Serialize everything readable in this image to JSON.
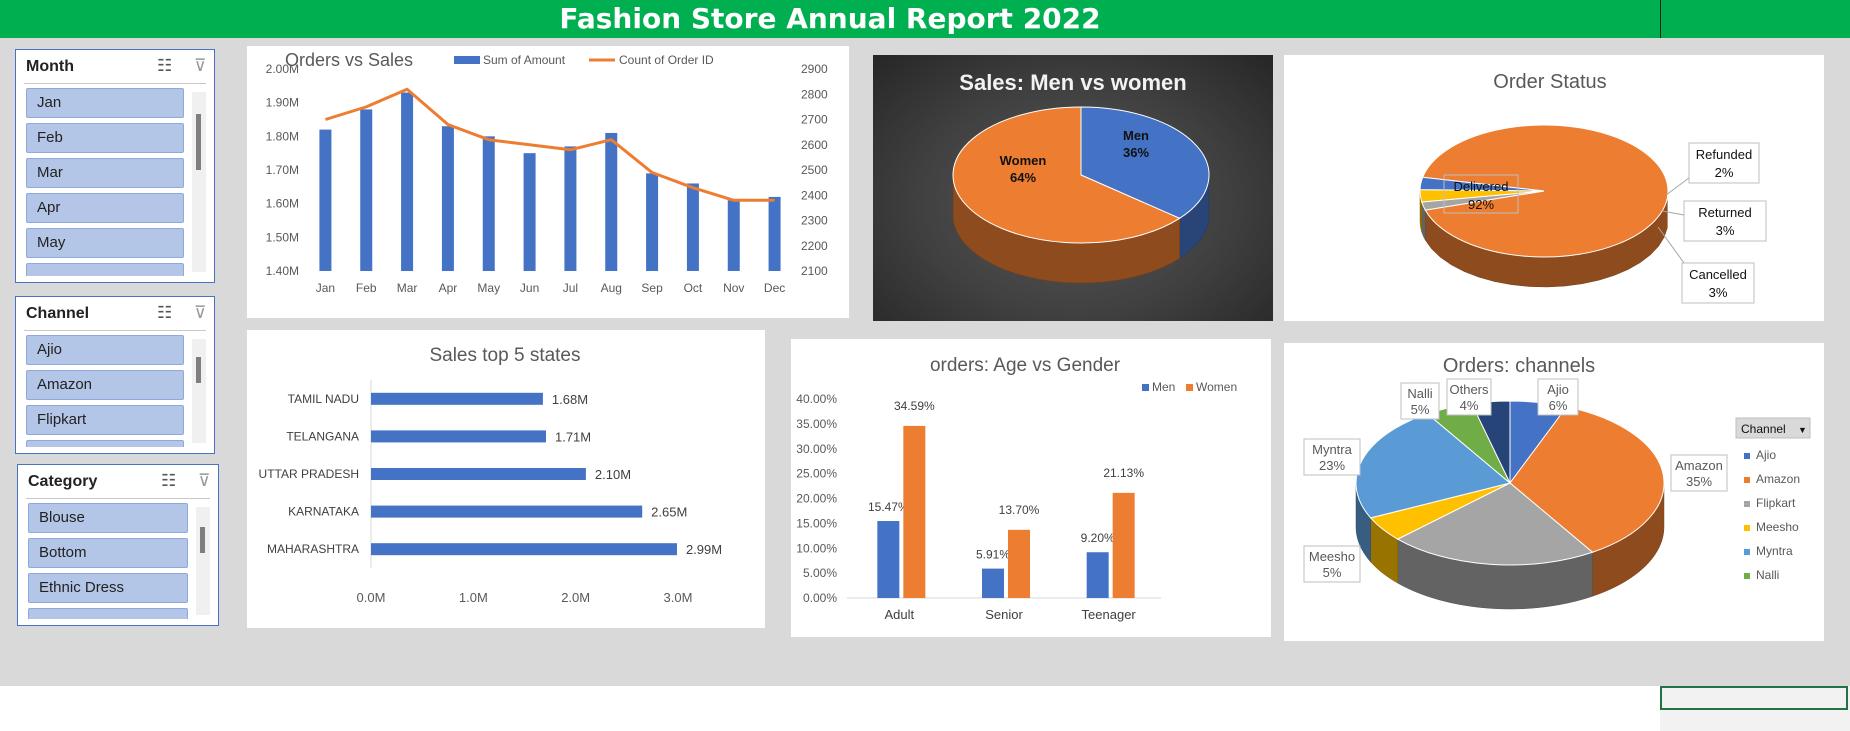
{
  "report_title": "Fashion Store Annual Report 2022",
  "slicers": {
    "month": {
      "title": "Month",
      "items": [
        "Jan",
        "Feb",
        "Mar",
        "Apr",
        "May"
      ]
    },
    "channel": {
      "title": "Channel",
      "items": [
        "Ajio",
        "Amazon",
        "Flipkart"
      ]
    },
    "category": {
      "title": "Category",
      "items": [
        "Blouse",
        "Bottom",
        "Ethnic Dress"
      ]
    }
  },
  "colors": {
    "blue": "#4472c4",
    "orange": "#ed7d31",
    "gray": "#a5a5a5",
    "yellow": "#ffc000",
    "lightblue": "#5b9bd5",
    "green": "#70ad47",
    "navy": "#264478",
    "title_green": "#00b050"
  },
  "chart_data": [
    {
      "id": "orders_vs_sales",
      "type": "bar",
      "title": "Orders vs Sales",
      "categories": [
        "Jan",
        "Feb",
        "Mar",
        "Apr",
        "May",
        "Jun",
        "Jul",
        "Aug",
        "Sep",
        "Oct",
        "Nov",
        "Dec"
      ],
      "series": [
        {
          "name": "Sum of Amount",
          "type": "bar",
          "axis": "left",
          "values": [
            1.82,
            1.88,
            1.93,
            1.83,
            1.8,
            1.75,
            1.77,
            1.81,
            1.69,
            1.66,
            1.61,
            1.62
          ]
        },
        {
          "name": "Count of Order ID",
          "type": "line",
          "axis": "right",
          "values": [
            2700,
            2750,
            2820,
            2680,
            2620,
            2600,
            2580,
            2620,
            2490,
            2430,
            2380,
            2380
          ]
        }
      ],
      "ylim_left": [
        1.4,
        2.0
      ],
      "ylim_right": [
        2100,
        2900
      ],
      "y_ticks_left": [
        "1.40M",
        "1.50M",
        "1.60M",
        "1.70M",
        "1.80M",
        "1.90M",
        "2.00M"
      ],
      "y_ticks_right": [
        "2100",
        "2200",
        "2300",
        "2400",
        "2500",
        "2600",
        "2700",
        "2800",
        "2900"
      ],
      "legend": "top-right"
    },
    {
      "id": "sales_men_women",
      "type": "pie",
      "title": "Sales: Men vs women",
      "categories": [
        "Men",
        "Women"
      ],
      "values": [
        36,
        64
      ],
      "labels": [
        "36%",
        "64%"
      ]
    },
    {
      "id": "order_status",
      "type": "pie",
      "title": "Order Status",
      "categories": [
        "Delivered",
        "Refunded",
        "Returned",
        "Cancelled"
      ],
      "values": [
        92,
        2,
        3,
        3
      ],
      "labels": [
        "92%",
        "2%",
        "3%",
        "3%"
      ]
    },
    {
      "id": "sales_top_states",
      "type": "bar",
      "orientation": "horizontal",
      "title": "Sales top 5 states",
      "categories": [
        "TAMIL NADU",
        "TELANGANA",
        "UTTAR PRADESH",
        "KARNATAKA",
        "MAHARASHTRA"
      ],
      "values": [
        1.68,
        1.71,
        2.1,
        2.65,
        2.99
      ],
      "labels": [
        "1.68M",
        "1.71M",
        "2.10M",
        "2.65M",
        "2.99M"
      ],
      "xlim": [
        0,
        3.0
      ],
      "x_ticks": [
        "0.0M",
        "1.0M",
        "2.0M",
        "3.0M"
      ]
    },
    {
      "id": "age_vs_gender",
      "type": "bar",
      "title": "orders: Age vs Gender",
      "categories": [
        "Adult",
        "Senior",
        "Teenager"
      ],
      "series": [
        {
          "name": "Men",
          "values": [
            15.47,
            5.91,
            9.2
          ],
          "labels": [
            "15.47%",
            "5.91%",
            "9.20%"
          ]
        },
        {
          "name": "Women",
          "values": [
            34.59,
            13.7,
            21.13
          ],
          "labels": [
            "34.59%",
            "13.70%",
            "21.13%"
          ]
        }
      ],
      "ylim": [
        0,
        40
      ],
      "y_ticks": [
        "0.00%",
        "5.00%",
        "10.00%",
        "15.00%",
        "20.00%",
        "25.00%",
        "30.00%",
        "35.00%",
        "40.00%"
      ],
      "legend": "top-right"
    },
    {
      "id": "orders_channels",
      "type": "pie",
      "title": "Orders: channels",
      "categories": [
        "Ajio",
        "Amazon",
        "Flipkart",
        "Meesho",
        "Myntra",
        "Nalli",
        "Others"
      ],
      "values": [
        6,
        35,
        22,
        5,
        23,
        5,
        4
      ],
      "labels": [
        "6%",
        "35%",
        "22%",
        "5%",
        "23%",
        "5%",
        "4%"
      ],
      "legend_title": "Channel",
      "legend": "right"
    }
  ]
}
